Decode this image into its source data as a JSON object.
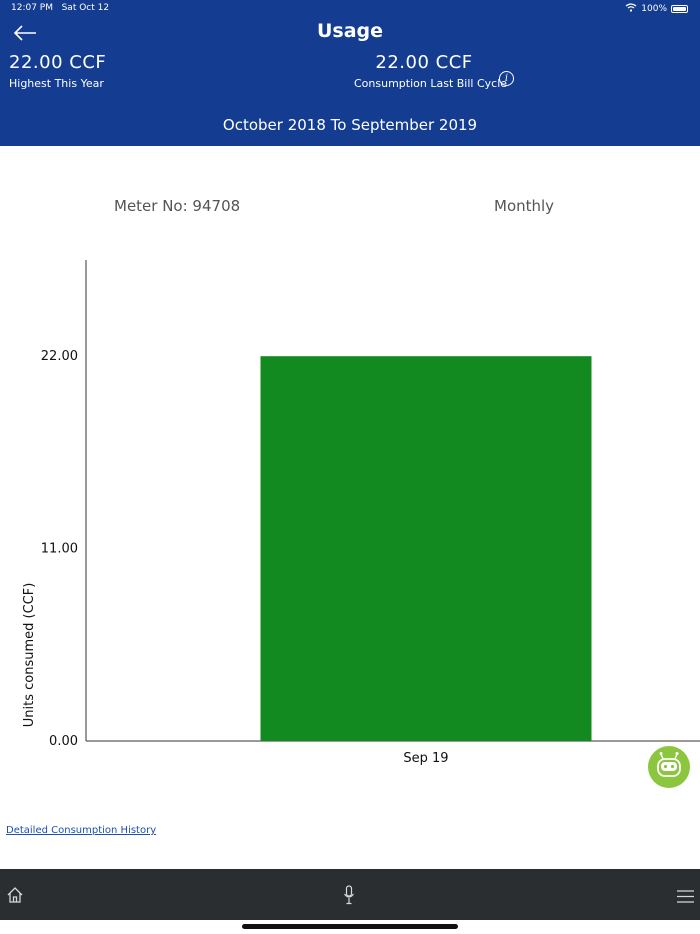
{
  "status_bar": {
    "time": "12:07 PM",
    "date": "Sat Oct 12",
    "battery": "100%"
  },
  "header": {
    "title": "Usage",
    "highest_value": "22.00 CCF",
    "highest_label": "Highest This Year",
    "last_value": "22.00 CCF",
    "last_label": "Consumption Last Bill Cycle",
    "range": "October 2018 To September 2019",
    "color": "#143c91"
  },
  "meter": {
    "label": "Meter No: 94708",
    "period": "Monthly"
  },
  "chart_data": {
    "type": "bar",
    "categories": [
      "Sep 19"
    ],
    "values": [
      22.0
    ],
    "ylabel": "Units consumed (CCF)",
    "yticks": [
      "0.00",
      "11.00",
      "22.00"
    ],
    "ylim": [
      0,
      27.5
    ],
    "bar_color": "#138a1f",
    "grid": false
  },
  "links": {
    "history": "Detailed Consumption History"
  },
  "tabbar": {
    "items": [
      "home-icon",
      "microphone-icon",
      "menu-icon"
    ]
  }
}
